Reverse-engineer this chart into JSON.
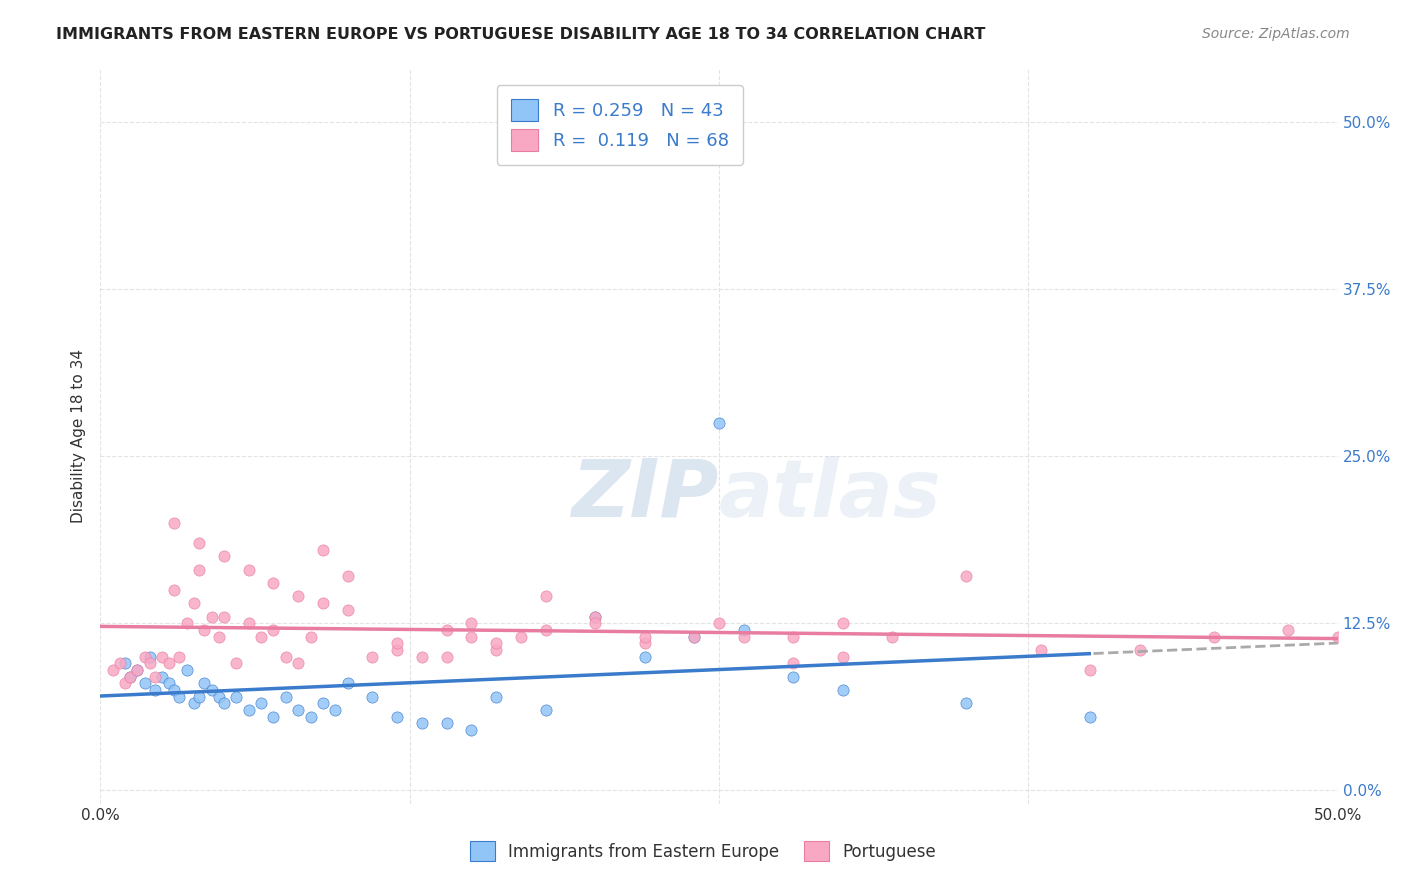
{
  "title": "IMMIGRANTS FROM EASTERN EUROPE VS PORTUGUESE DISABILITY AGE 18 TO 34 CORRELATION CHART",
  "source": "Source: ZipAtlas.com",
  "xlabel": "",
  "ylabel": "Disability Age 18 to 34",
  "xlim": [
    0.0,
    0.5
  ],
  "ylim": [
    -0.01,
    0.54
  ],
  "ytick_labels": [
    "0.0%",
    "12.5%",
    "25.0%",
    "37.5%",
    "50.0%"
  ],
  "ytick_vals": [
    0.0,
    0.125,
    0.25,
    0.375,
    0.5
  ],
  "xtick_labels": [
    "0.0%",
    "",
    "",
    "",
    "50.0%"
  ],
  "xtick_vals": [
    0.0,
    0.125,
    0.25,
    0.375,
    0.5
  ],
  "blue_R": "0.259",
  "blue_N": "43",
  "pink_R": "0.119",
  "pink_N": "68",
  "blue_color": "#92C5F7",
  "pink_color": "#F9A8C4",
  "blue_line_color": "#3B7BCC",
  "pink_line_color": "#E87DA0",
  "dashed_line_color": "#AAAAAA",
  "watermark_zip": "ZIP",
  "watermark_atlas": "atlas",
  "blue_points_x": [
    0.01,
    0.012,
    0.015,
    0.018,
    0.02,
    0.022,
    0.025,
    0.028,
    0.03,
    0.032,
    0.035,
    0.038,
    0.04,
    0.042,
    0.045,
    0.048,
    0.05,
    0.055,
    0.06,
    0.065,
    0.07,
    0.075,
    0.08,
    0.085,
    0.09,
    0.095,
    0.1,
    0.11,
    0.12,
    0.13,
    0.14,
    0.15,
    0.16,
    0.18,
    0.2,
    0.22,
    0.24,
    0.26,
    0.28,
    0.3,
    0.35,
    0.4,
    0.25
  ],
  "blue_points_y": [
    0.095,
    0.085,
    0.09,
    0.08,
    0.1,
    0.075,
    0.085,
    0.08,
    0.075,
    0.07,
    0.09,
    0.065,
    0.07,
    0.08,
    0.075,
    0.07,
    0.065,
    0.07,
    0.06,
    0.065,
    0.055,
    0.07,
    0.06,
    0.055,
    0.065,
    0.06,
    0.08,
    0.07,
    0.055,
    0.05,
    0.05,
    0.045,
    0.07,
    0.06,
    0.13,
    0.1,
    0.115,
    0.12,
    0.085,
    0.075,
    0.065,
    0.055,
    0.275
  ],
  "pink_points_x": [
    0.005,
    0.008,
    0.01,
    0.012,
    0.015,
    0.018,
    0.02,
    0.022,
    0.025,
    0.028,
    0.03,
    0.032,
    0.035,
    0.038,
    0.04,
    0.042,
    0.045,
    0.048,
    0.05,
    0.055,
    0.06,
    0.065,
    0.07,
    0.075,
    0.08,
    0.085,
    0.09,
    0.1,
    0.11,
    0.12,
    0.13,
    0.14,
    0.15,
    0.16,
    0.17,
    0.18,
    0.2,
    0.22,
    0.24,
    0.26,
    0.28,
    0.3,
    0.32,
    0.35,
    0.38,
    0.4,
    0.42,
    0.45,
    0.48,
    0.5,
    0.03,
    0.04,
    0.05,
    0.06,
    0.07,
    0.08,
    0.09,
    0.1,
    0.15,
    0.2,
    0.25,
    0.3,
    0.18,
    0.22,
    0.12,
    0.14,
    0.16,
    0.28
  ],
  "pink_points_y": [
    0.09,
    0.095,
    0.08,
    0.085,
    0.09,
    0.1,
    0.095,
    0.085,
    0.1,
    0.095,
    0.15,
    0.1,
    0.125,
    0.14,
    0.165,
    0.12,
    0.13,
    0.115,
    0.13,
    0.095,
    0.125,
    0.115,
    0.12,
    0.1,
    0.095,
    0.115,
    0.18,
    0.16,
    0.1,
    0.105,
    0.1,
    0.12,
    0.115,
    0.105,
    0.115,
    0.12,
    0.13,
    0.11,
    0.115,
    0.115,
    0.095,
    0.1,
    0.115,
    0.16,
    0.105,
    0.09,
    0.105,
    0.115,
    0.12,
    0.115,
    0.2,
    0.185,
    0.175,
    0.165,
    0.155,
    0.145,
    0.14,
    0.135,
    0.125,
    0.125,
    0.125,
    0.125,
    0.145,
    0.115,
    0.11,
    0.1,
    0.11,
    0.115
  ],
  "background_color": "#FFFFFF",
  "grid_color": "#DDDDDD"
}
